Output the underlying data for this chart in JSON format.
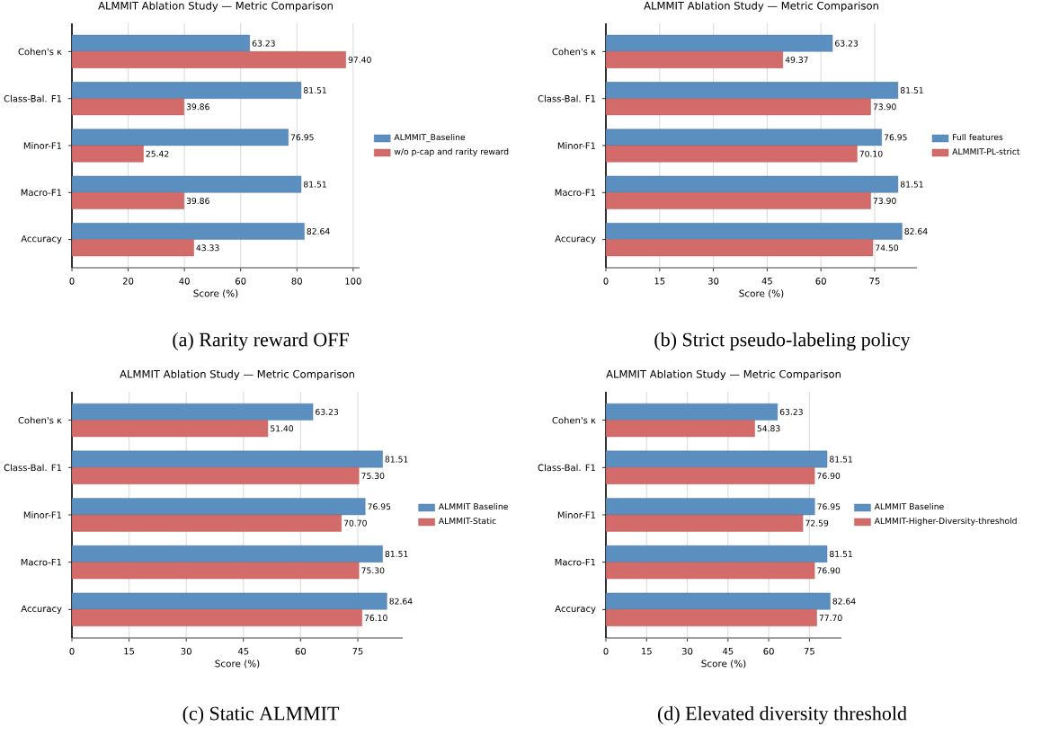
{
  "chart_data": [
    {
      "type": "bar",
      "orientation": "horizontal",
      "title": "ALMMIT Ablation Study — Metric Comparison",
      "xlabel": "Score (%)",
      "categories": [
        "Cohen's κ",
        "Class-Bal. F1",
        "Minor-F1",
        "Macro-F1",
        "Accuracy"
      ],
      "xlim": [
        0,
        102.3
      ],
      "xticks": [
        0,
        20,
        40,
        60,
        80,
        100
      ],
      "grid": "x",
      "legend": "right",
      "annotations": [
        "(a) Rarity reward OFF"
      ],
      "series": [
        {
          "name": "ALMMIT_Baseline",
          "color": "#5a8fc0",
          "values": [
            63.23,
            81.51,
            76.95,
            81.51,
            82.64
          ],
          "value_labels": [
            "63.23",
            "81.51",
            "76.95",
            "81.51",
            "82.64"
          ]
        },
        {
          "name": "w/o p-cap and rarity reward",
          "color": "#d46b6b",
          "values": [
            97.4,
            39.86,
            25.42,
            39.86,
            43.33
          ],
          "value_labels": [
            "97.40",
            "39.86",
            "25.42",
            "39.86",
            "43.33"
          ]
        }
      ]
    },
    {
      "type": "bar",
      "orientation": "horizontal",
      "title": "ALMMIT Ablation Study — Metric Comparison",
      "xlabel": "Score (%)",
      "categories": [
        "Cohen's κ",
        "Class-Bal. F1",
        "Minor-F1",
        "Macro-F1",
        "Accuracy"
      ],
      "xlim": [
        0,
        86.8
      ],
      "xticks": [
        0,
        15,
        30,
        45,
        60,
        75
      ],
      "grid": "x",
      "legend": "right",
      "annotations": [
        "(b) Strict pseudo-labeling policy"
      ],
      "series": [
        {
          "name": "Full features",
          "color": "#5a8fc0",
          "values": [
            63.23,
            81.51,
            76.95,
            81.51,
            82.64
          ],
          "value_labels": [
            "63.23",
            "81.51",
            "76.95",
            "81.51",
            "82.64"
          ]
        },
        {
          "name": "ALMMIT-PL-strict",
          "color": "#d46b6b",
          "values": [
            49.37,
            73.9,
            70.1,
            73.9,
            74.5
          ],
          "value_labels": [
            "49.37",
            "73.90",
            "70.10",
            "73.90",
            "74.50"
          ]
        }
      ]
    },
    {
      "type": "bar",
      "orientation": "horizontal",
      "title": "ALMMIT Ablation Study — Metric Comparison",
      "xlabel": "Score (%)",
      "categories": [
        "Cohen's κ",
        "Class-Bal. F1",
        "Minor-F1",
        "Macro-F1",
        "Accuracy"
      ],
      "xlim": [
        0,
        86.8
      ],
      "xticks": [
        0,
        15,
        30,
        45,
        60,
        75
      ],
      "grid": "x",
      "legend": "right",
      "annotations": [
        "(c) Static ALMMIT"
      ],
      "series": [
        {
          "name": "ALMMIT Baseline",
          "color": "#5a8fc0",
          "values": [
            63.23,
            81.51,
            76.95,
            81.51,
            82.64
          ],
          "value_labels": [
            "63.23",
            "81.51",
            "76.95",
            "81.51",
            "82.64"
          ]
        },
        {
          "name": "ALMMIT-Static",
          "color": "#d46b6b",
          "values": [
            51.4,
            75.3,
            70.7,
            75.3,
            76.1
          ],
          "value_labels": [
            "51.40",
            "75.30",
            "70.70",
            "75.30",
            "76.10"
          ]
        }
      ]
    },
    {
      "type": "bar",
      "orientation": "horizontal",
      "title": "ALMMIT Ablation Study — Metric Comparison",
      "xlabel": "Score (%)",
      "categories": [
        "Cohen's κ",
        "Class-Bal. F1",
        "Minor-F1",
        "Macro-F1",
        "Accuracy"
      ],
      "xlim": [
        0,
        86.8
      ],
      "xticks": [
        0,
        15,
        30,
        45,
        60,
        75
      ],
      "grid": "x",
      "legend": "right",
      "annotations": [
        "(d) Elevated diversity threshold"
      ],
      "series": [
        {
          "name": "ALMMIT Baseline",
          "color": "#5a8fc0",
          "values": [
            63.23,
            81.51,
            76.95,
            81.51,
            82.64
          ],
          "value_labels": [
            "63.23",
            "81.51",
            "76.95",
            "81.51",
            "82.64"
          ]
        },
        {
          "name": "ALMMIT-Higher-Diversity-threshold",
          "color": "#d46b6b",
          "values": [
            54.83,
            76.9,
            72.59,
            76.9,
            77.7
          ],
          "value_labels": [
            "54.83",
            "76.90",
            "72.59",
            "76.90",
            "77.70"
          ]
        }
      ]
    }
  ]
}
